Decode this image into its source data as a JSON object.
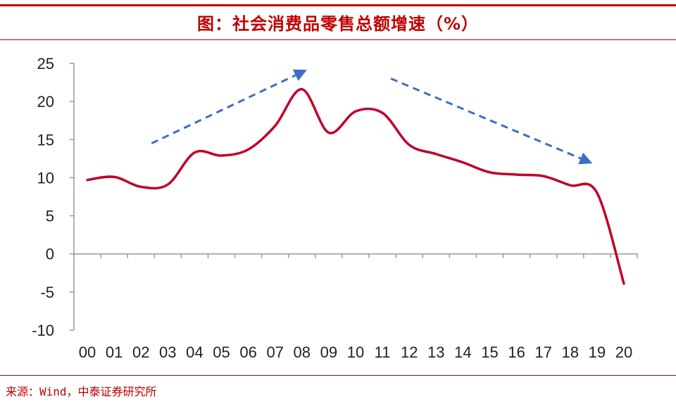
{
  "header": {
    "title": "图：社会消费品零售总额增速（%）"
  },
  "footer": {
    "source": "来源：Wind，中泰证券研究所"
  },
  "colors": {
    "line": "#c0002a",
    "arrow": "#3b6fc4",
    "rule": "#c00000"
  },
  "chart_data": {
    "type": "line",
    "title": "图：社会消费品零售总额增速（%）",
    "xlabel": "",
    "ylabel": "",
    "categories": [
      "00",
      "01",
      "02",
      "03",
      "04",
      "05",
      "06",
      "07",
      "08",
      "09",
      "10",
      "11",
      "12",
      "13",
      "14",
      "15",
      "16",
      "17",
      "18",
      "19",
      "20"
    ],
    "x_ticks": [
      "00",
      "01",
      "02",
      "03",
      "04",
      "05",
      "06",
      "07",
      "08",
      "09",
      "10",
      "11",
      "12",
      "13",
      "14",
      "15",
      "16",
      "17",
      "18",
      "19",
      "20"
    ],
    "y_ticks": [
      "25",
      "20",
      "15",
      "10",
      "5",
      "0",
      "-5",
      "-10"
    ],
    "ylim": [
      -10,
      25
    ],
    "grid": false,
    "series": [
      {
        "values": [
          9.7,
          10.1,
          8.8,
          9.1,
          13.3,
          12.9,
          13.7,
          16.8,
          21.6,
          15.9,
          18.7,
          18.5,
          14.3,
          13.1,
          12.0,
          10.7,
          10.4,
          10.2,
          9.0,
          8.0,
          -3.9
        ]
      }
    ],
    "annotations": [
      {
        "type": "trend-arrow",
        "direction": "up",
        "from": {
          "x": "02",
          "y": 14.5
        },
        "to": {
          "x": "08",
          "y": 23.8
        }
      },
      {
        "type": "trend-arrow",
        "direction": "down",
        "from": {
          "x": "11",
          "y": 23.0
        },
        "to": {
          "x": "19",
          "y": 12.2
        }
      }
    ]
  }
}
